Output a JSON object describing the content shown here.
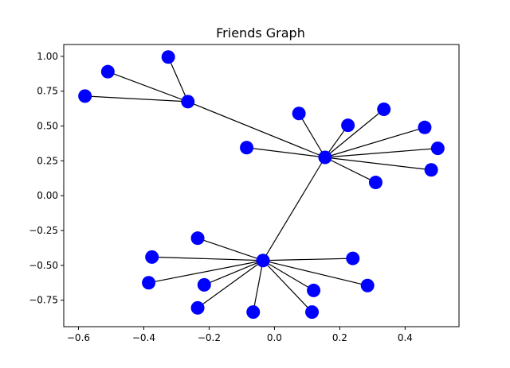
{
  "chart_data": {
    "type": "network",
    "title": "Friends Graph",
    "xlim": [
      -0.645,
      0.565
    ],
    "ylim": [
      -0.94,
      1.085
    ],
    "x_ticks": [
      -0.6,
      -0.4,
      -0.2,
      0.0,
      0.2,
      0.4
    ],
    "x_tick_labels": [
      "−0.6",
      "−0.4",
      "−0.2",
      "0.0",
      "0.2",
      "0.4"
    ],
    "y_ticks": [
      1.0,
      0.75,
      0.5,
      0.25,
      0.0,
      -0.25,
      -0.5,
      -0.75
    ],
    "y_tick_labels": [
      "1.00",
      "0.75",
      "0.50",
      "0.25",
      "0.00",
      "−0.25",
      "−0.50",
      "−0.75"
    ],
    "grid": false,
    "node_color": "#0000ff",
    "edge_color": "#000000",
    "nodes": [
      {
        "id": "hub-top",
        "x": 0.155,
        "y": 0.275
      },
      {
        "id": "hub-bottom",
        "x": -0.035,
        "y": -0.465
      },
      {
        "id": "hub-left",
        "x": -0.265,
        "y": 0.675
      },
      {
        "id": "n3",
        "x": -0.325,
        "y": 0.995
      },
      {
        "id": "n4",
        "x": -0.51,
        "y": 0.89
      },
      {
        "id": "n5",
        "x": -0.58,
        "y": 0.715
      },
      {
        "id": "n6",
        "x": 0.075,
        "y": 0.59
      },
      {
        "id": "n7",
        "x": 0.225,
        "y": 0.505
      },
      {
        "id": "n8",
        "x": 0.335,
        "y": 0.62
      },
      {
        "id": "n9",
        "x": 0.46,
        "y": 0.49
      },
      {
        "id": "n10",
        "x": 0.5,
        "y": 0.34
      },
      {
        "id": "n11",
        "x": 0.48,
        "y": 0.185
      },
      {
        "id": "n12",
        "x": 0.31,
        "y": 0.095
      },
      {
        "id": "n13",
        "x": -0.085,
        "y": 0.345
      },
      {
        "id": "n14",
        "x": -0.235,
        "y": -0.305
      },
      {
        "id": "n15",
        "x": -0.375,
        "y": -0.44
      },
      {
        "id": "n16",
        "x": -0.385,
        "y": -0.625
      },
      {
        "id": "n17",
        "x": -0.215,
        "y": -0.64
      },
      {
        "id": "n18",
        "x": -0.235,
        "y": -0.805
      },
      {
        "id": "n19",
        "x": -0.065,
        "y": -0.835
      },
      {
        "id": "n20",
        "x": 0.115,
        "y": -0.835
      },
      {
        "id": "n21",
        "x": 0.12,
        "y": -0.68
      },
      {
        "id": "n22",
        "x": 0.24,
        "y": -0.45
      },
      {
        "id": "n23",
        "x": 0.285,
        "y": -0.645
      }
    ],
    "edges": [
      [
        "hub-left",
        "n3"
      ],
      [
        "hub-left",
        "n4"
      ],
      [
        "hub-left",
        "n5"
      ],
      [
        "hub-left",
        "hub-top"
      ],
      [
        "hub-top",
        "n6"
      ],
      [
        "hub-top",
        "n7"
      ],
      [
        "hub-top",
        "n8"
      ],
      [
        "hub-top",
        "n9"
      ],
      [
        "hub-top",
        "n10"
      ],
      [
        "hub-top",
        "n11"
      ],
      [
        "hub-top",
        "n12"
      ],
      [
        "hub-top",
        "n13"
      ],
      [
        "hub-top",
        "hub-bottom"
      ],
      [
        "hub-bottom",
        "n14"
      ],
      [
        "hub-bottom",
        "n15"
      ],
      [
        "hub-bottom",
        "n16"
      ],
      [
        "hub-bottom",
        "n17"
      ],
      [
        "hub-bottom",
        "n18"
      ],
      [
        "hub-bottom",
        "n19"
      ],
      [
        "hub-bottom",
        "n20"
      ],
      [
        "hub-bottom",
        "n21"
      ],
      [
        "hub-bottom",
        "n22"
      ],
      [
        "hub-bottom",
        "n23"
      ]
    ]
  }
}
